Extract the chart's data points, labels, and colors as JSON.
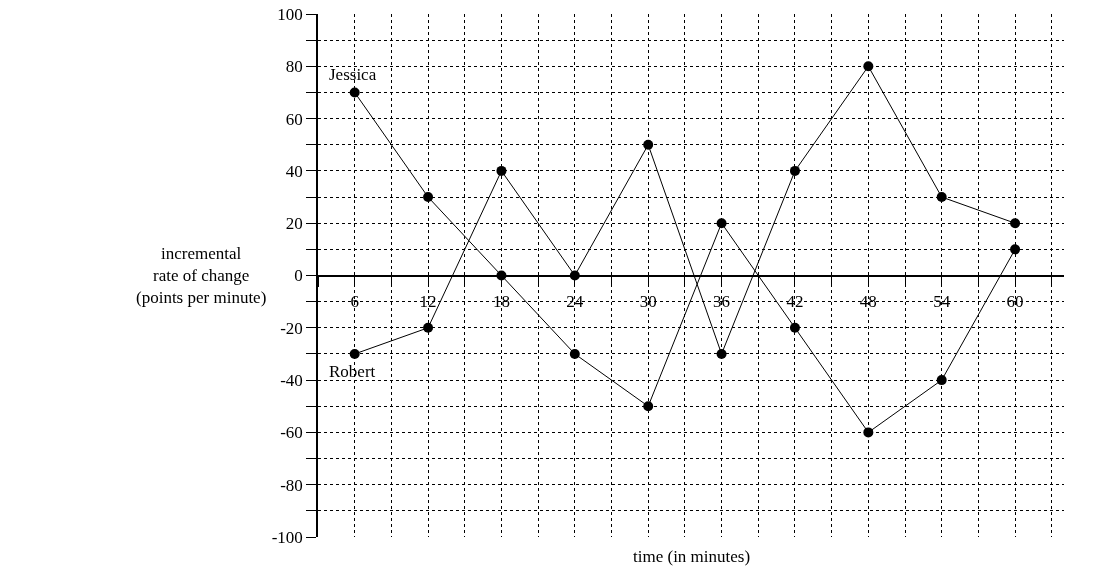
{
  "chart_data": {
    "type": "line",
    "xlabel": "time (in minutes)",
    "ylabel": "incremental\nrate of change\n(points per minute)",
    "x": [
      6,
      12,
      18,
      24,
      30,
      36,
      42,
      48,
      54,
      60
    ],
    "series": [
      {
        "name": "Jessica",
        "color": "#000000",
        "values": [
          70,
          30,
          0,
          -30,
          -50,
          20,
          -20,
          -60,
          -40,
          10
        ]
      },
      {
        "name": "Robert",
        "color": "#000000",
        "values": [
          -30,
          -20,
          40,
          0,
          50,
          -30,
          40,
          80,
          30,
          20
        ]
      }
    ],
    "xlim": [
      3,
      64
    ],
    "xticks": [
      {
        "value": 3,
        "label": null
      },
      6,
      {
        "value": 9,
        "label": null
      },
      12,
      {
        "value": 15,
        "label": null
      },
      18,
      {
        "value": 21,
        "label": null
      },
      24,
      {
        "value": 27,
        "label": null
      },
      30,
      {
        "value": 33,
        "label": null
      },
      36,
      {
        "value": 39,
        "label": null
      },
      42,
      {
        "value": 45,
        "label": null
      },
      48,
      {
        "value": 51,
        "label": null
      },
      54,
      {
        "value": 57,
        "label": null
      },
      60,
      {
        "value": 63,
        "label": null
      }
    ],
    "ylim": [
      -100,
      100
    ],
    "yticks": [
      -100,
      {
        "value": -90,
        "label": null
      },
      -80,
      {
        "value": -70,
        "label": null
      },
      -60,
      {
        "value": -50,
        "label": null
      },
      -40,
      {
        "value": -30,
        "label": null
      },
      -20,
      {
        "value": -10,
        "label": null
      },
      0,
      {
        "value": 10,
        "label": null
      },
      20,
      {
        "value": 30,
        "label": null
      },
      40,
      {
        "value": 50,
        "label": null
      },
      60,
      {
        "value": 70,
        "label": null
      },
      80,
      {
        "value": 90,
        "label": null
      },
      100
    ],
    "grid": true,
    "marker": "circle",
    "line_style": "solid",
    "legend": false
  }
}
